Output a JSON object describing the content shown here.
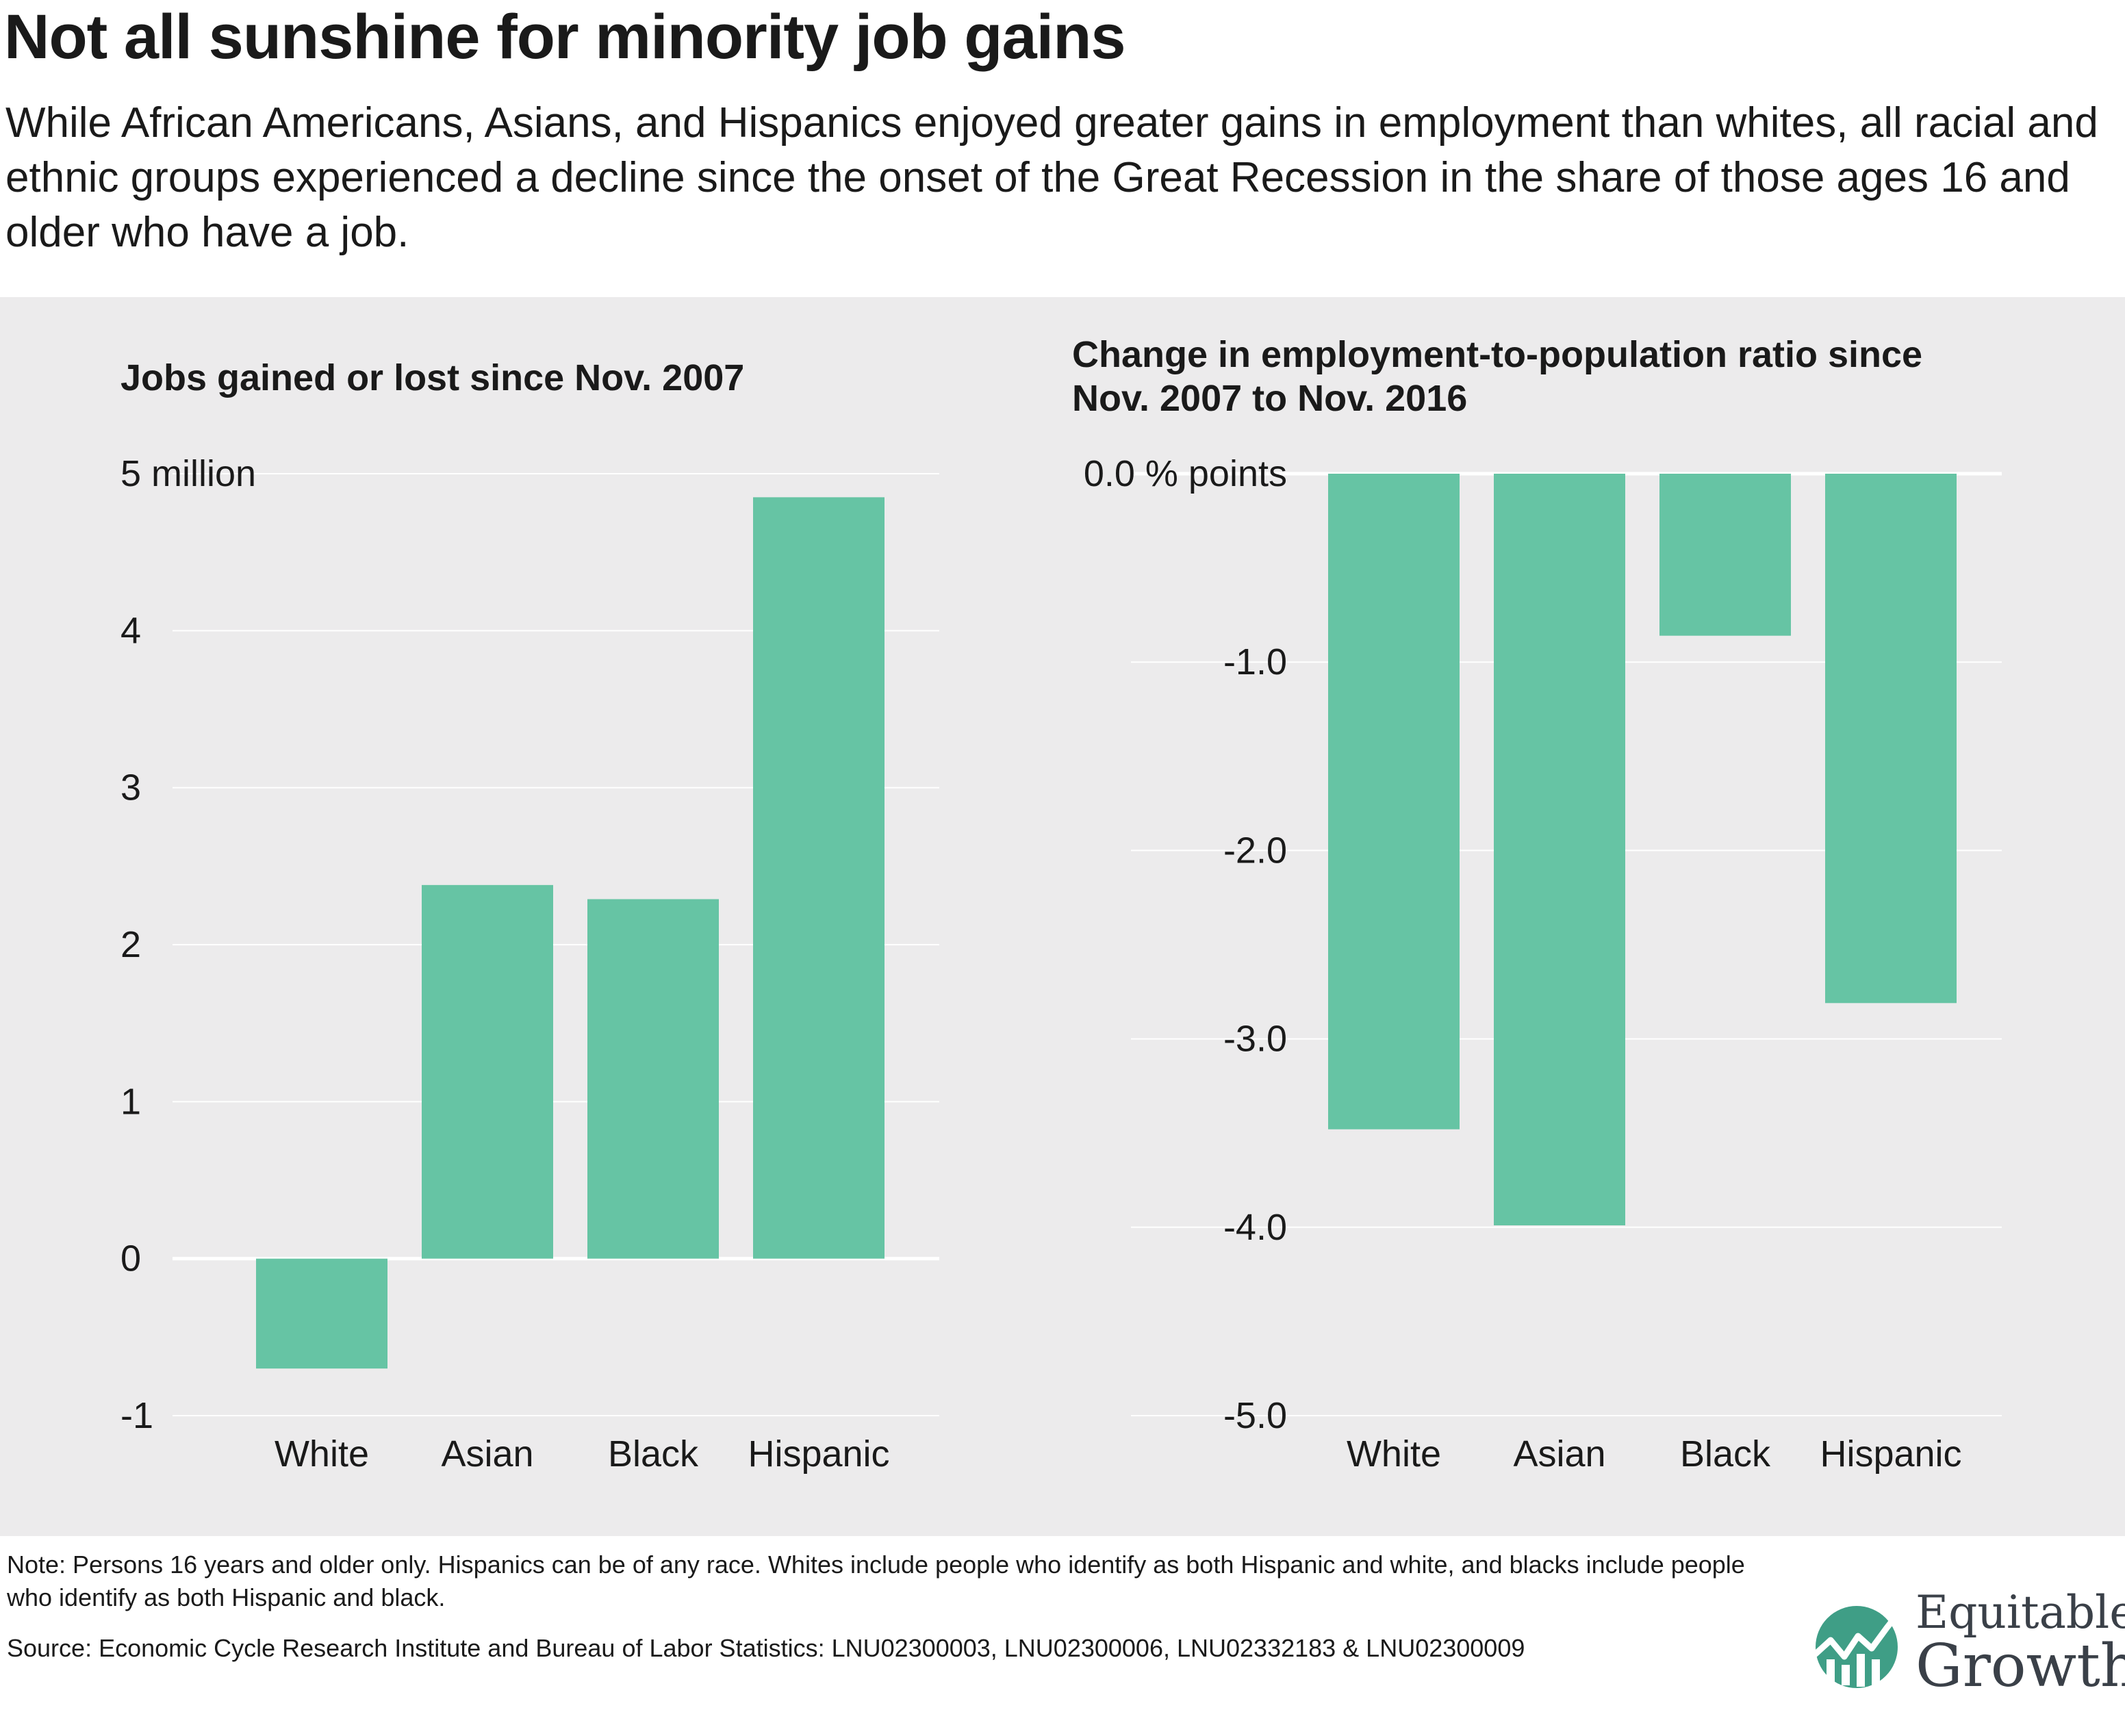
{
  "title": "Not all sunshine for minority job gains",
  "subtitle": "While African Americans, Asians, and Hispanics enjoyed greater gains in employment than whites, all racial and ethnic groups experienced a decline since the onset of the Great Recession in the share of those ages 16 and older who have a job.",
  "colors": {
    "bar": "#66c4a4",
    "panel_background": "#ecebec",
    "logo_circle": "#3f9e86"
  },
  "chart_data": [
    {
      "type": "bar",
      "title": "Jobs gained or lost since Nov. 2007",
      "categories": [
        "White",
        "Asian",
        "Black",
        "Hispanic"
      ],
      "values": [
        -0.7,
        2.38,
        2.29,
        4.85
      ],
      "ylim": [
        -1,
        5
      ],
      "yticks": [
        -1,
        0,
        1,
        2,
        3,
        4,
        5
      ],
      "ytick_labels": [
        "-1",
        "0",
        "1",
        "2",
        "3",
        "4",
        "5 million"
      ],
      "grid": true
    },
    {
      "type": "bar",
      "title": "Change in employment-to-population ratio since Nov. 2007 to Nov. 2016",
      "title_lines": [
        "Change in employment-to-population ratio since",
        "Nov. 2007 to Nov. 2016"
      ],
      "categories": [
        "White",
        "Asian",
        "Black",
        "Hispanic"
      ],
      "values": [
        -3.48,
        -3.99,
        -0.86,
        -2.81
      ],
      "ylim": [
        -5,
        0
      ],
      "yticks": [
        -5,
        -4,
        -3,
        -2,
        -1,
        0
      ],
      "ytick_labels": [
        "-5.0",
        "-4.0",
        "-3.0",
        "-2.0",
        "-1.0",
        "0.0 % points"
      ],
      "grid": true
    }
  ],
  "footer": {
    "note": "Note: Persons 16 years and older only. Hispanics can be of any race. Whites include people who identify as both Hispanic and white, and blacks include people who identify as both Hispanic and black.",
    "source": "Source: Economic Cycle Research Institute and Bureau of Labor Statistics: LNU02300003, LNU02300006, LNU02332183 & LNU02300009"
  },
  "logo": {
    "line1": "Equitable",
    "line2": "Growth",
    "icon": "trend-line-circle-icon"
  }
}
